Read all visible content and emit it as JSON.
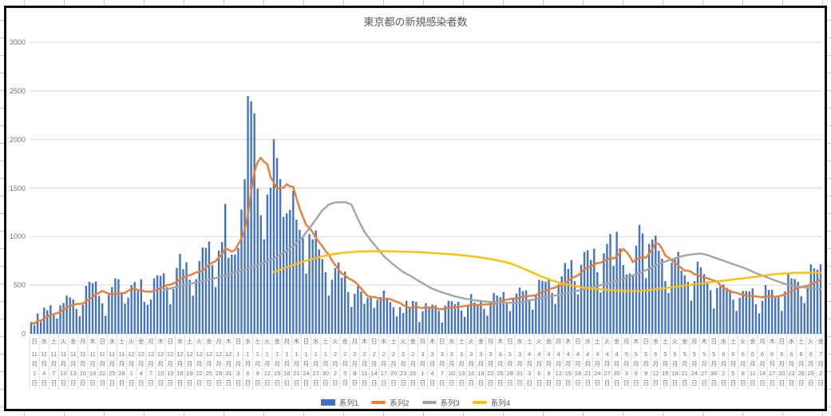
{
  "chart_data": {
    "type": "combo",
    "title": "東京都の新規感染者数",
    "y_axis": {
      "min": 0,
      "max": 3000,
      "step": 500,
      "tick_labels": [
        "0",
        "500",
        "1000",
        "1500",
        "2000",
        "2500",
        "3000"
      ]
    },
    "x_label_suffixes": {
      "month": "月",
      "day": "日"
    },
    "x_labels": [
      [
        "日",
        11,
        1
      ],
      [
        "水",
        11,
        4
      ],
      [
        "土",
        11,
        7
      ],
      [
        "火",
        11,
        10
      ],
      [
        "金",
        11,
        13
      ],
      [
        "月",
        11,
        16
      ],
      [
        "木",
        11,
        19
      ],
      [
        "日",
        11,
        22
      ],
      [
        "水",
        11,
        25
      ],
      [
        "土",
        11,
        28
      ],
      [
        "火",
        12,
        1
      ],
      [
        "金",
        12,
        4
      ],
      [
        "月",
        12,
        7
      ],
      [
        "木",
        12,
        10
      ],
      [
        "日",
        12,
        13
      ],
      [
        "水",
        12,
        16
      ],
      [
        "土",
        12,
        19
      ],
      [
        "火",
        12,
        22
      ],
      [
        "金",
        12,
        25
      ],
      [
        "月",
        12,
        28
      ],
      [
        "木",
        12,
        31
      ],
      [
        "日",
        1,
        3
      ],
      [
        "水",
        1,
        6
      ],
      [
        "土",
        1,
        9
      ],
      [
        "火",
        1,
        12
      ],
      [
        "金",
        1,
        15
      ],
      [
        "月",
        1,
        18
      ],
      [
        "木",
        1,
        21
      ],
      [
        "日",
        1,
        24
      ],
      [
        "水",
        1,
        27
      ],
      [
        "土",
        1,
        30
      ],
      [
        "火",
        2,
        2
      ],
      [
        "金",
        2,
        5
      ],
      [
        "月",
        2,
        8
      ],
      [
        "木",
        2,
        11
      ],
      [
        "日",
        2,
        14
      ],
      [
        "水",
        2,
        17
      ],
      [
        "土",
        2,
        20
      ],
      [
        "火",
        2,
        23
      ],
      [
        "金",
        2,
        26
      ],
      [
        "月",
        3,
        1
      ],
      [
        "木",
        3,
        4
      ],
      [
        "日",
        3,
        7
      ],
      [
        "水",
        3,
        10
      ],
      [
        "土",
        3,
        13
      ],
      [
        "火",
        3,
        16
      ],
      [
        "金",
        3,
        19
      ],
      [
        "月",
        3,
        22
      ],
      [
        "木",
        3,
        25
      ],
      [
        "日",
        3,
        28
      ],
      [
        "水",
        3,
        31
      ],
      [
        "土",
        4,
        3
      ],
      [
        "火",
        4,
        6
      ],
      [
        "金",
        4,
        9
      ],
      [
        "月",
        4,
        12
      ],
      [
        "木",
        4,
        15
      ],
      [
        "日",
        4,
        18
      ],
      [
        "水",
        4,
        21
      ],
      [
        "土",
        4,
        24
      ],
      [
        "火",
        4,
        27
      ],
      [
        "金",
        4,
        30
      ],
      [
        "月",
        5,
        3
      ],
      [
        "木",
        5,
        6
      ],
      [
        "日",
        5,
        9
      ],
      [
        "水",
        5,
        12
      ],
      [
        "土",
        5,
        15
      ],
      [
        "火",
        5,
        18
      ],
      [
        "金",
        5,
        21
      ],
      [
        "月",
        5,
        24
      ],
      [
        "木",
        5,
        27
      ],
      [
        "日",
        5,
        30
      ],
      [
        "水",
        6,
        2
      ],
      [
        "土",
        6,
        5
      ],
      [
        "火",
        6,
        8
      ],
      [
        "金",
        6,
        11
      ],
      [
        "月",
        6,
        14
      ],
      [
        "木",
        6,
        17
      ],
      [
        "日",
        6,
        20
      ],
      [
        "水",
        6,
        23
      ],
      [
        "土",
        6,
        26
      ],
      [
        "火",
        6,
        29
      ],
      [
        "金",
        7,
        2
      ]
    ],
    "series": [
      {
        "name": "系列1",
        "type": "bar",
        "color": "#4472C4",
        "values": [
          116,
          87,
          209,
          122,
          269,
          242,
          294,
          189,
          157,
          293,
          317,
          393,
          374,
          352,
          255,
          180,
          298,
          493,
          534,
          522,
          539,
          391,
          314,
          186,
          401,
          481,
          570,
          561,
          418,
          311,
          372,
          500,
          533,
          449,
          561,
          327,
          299,
          352,
          572,
          602,
          595,
          621,
          480,
          305,
          460,
          678,
          822,
          664,
          736,
          556,
          392,
          563,
          748,
          888,
          884,
          949,
          708,
          481,
          856,
          944,
          1337,
          783,
          814,
          816,
          884,
          1278,
          1591,
          2447,
          2392,
          2268,
          1494,
          1219,
          970,
          1433,
          1502,
          2001,
          1809,
          1592,
          1204,
          1240,
          1274,
          1471,
          1175,
          1070,
          986,
          618,
          1026,
          973,
          1064,
          868,
          769,
          633,
          393,
          556,
          676,
          734,
          577,
          639,
          429,
          276,
          412,
          491,
          434,
          307,
          369,
          371,
          266,
          350,
          378,
          445,
          353,
          327,
          272,
          178,
          275,
          213,
          340,
          270,
          337,
          329,
          121,
          232,
          316,
          279,
          301,
          293,
          237,
          116,
          290,
          340,
          335,
          304,
          330,
          239,
          175,
          300,
          409,
          323,
          303,
          342,
          256,
          187,
          337,
          420,
          394,
          376,
          430,
          313,
          234,
          364,
          414,
          475,
          440,
          446,
          355,
          249,
          399,
          555,
          545,
          537,
          570,
          421,
          306,
          510,
          591,
          729,
          667,
          759,
          543,
          405,
          711,
          843,
          861,
          759,
          876,
          635,
          425,
          828,
          925,
          1027,
          698,
          1050,
          879,
          708,
          609,
          621,
          591,
          907,
          1121,
          1032,
          573,
          925,
          969,
          1010,
          854,
          772,
          542,
          419,
          732,
          766,
          843,
          649,
          602,
          535,
          340,
          542,
          743,
          684,
          614,
          539,
          448,
          260,
          471,
          487,
          508,
          472,
          436,
          351,
          235,
          369,
          440,
          439,
          435,
          467,
          304,
          209,
          337,
          501,
          452,
          453,
          388,
          376,
          236,
          435,
          619,
          570,
          562,
          534,
          386,
          317,
          476,
          714,
          673,
          660,
          716
        ]
      },
      {
        "name": "系列2",
        "type": "line",
        "color": "#ED7D31",
        "note": "7-day moving average of 系列1 (computed by renderer)"
      },
      {
        "name": "系列3",
        "type": "line",
        "color": "#A5A5A5",
        "points_day_value": [
          [
            41,
            450
          ],
          [
            45,
            483
          ],
          [
            50,
            520
          ],
          [
            55,
            555
          ],
          [
            60,
            600
          ],
          [
            64,
            640
          ],
          [
            68,
            685
          ],
          [
            71,
            720
          ],
          [
            75,
            775
          ],
          [
            78,
            830
          ],
          [
            81,
            900
          ],
          [
            84,
            1000
          ],
          [
            87,
            1130
          ],
          [
            90,
            1270
          ],
          [
            92,
            1330
          ],
          [
            94,
            1352
          ],
          [
            97,
            1355
          ],
          [
            99,
            1330
          ],
          [
            101,
            1180
          ],
          [
            103,
            1050
          ],
          [
            105,
            960
          ],
          [
            107,
            880
          ],
          [
            109,
            800
          ],
          [
            111,
            740
          ],
          [
            113,
            685
          ],
          [
            115,
            635
          ],
          [
            117,
            600
          ],
          [
            119,
            560
          ],
          [
            121,
            520
          ],
          [
            123,
            480
          ],
          [
            125,
            450
          ],
          [
            128,
            415
          ],
          [
            131,
            385
          ],
          [
            134,
            362
          ],
          [
            137,
            345
          ],
          [
            140,
            333
          ],
          [
            143,
            325
          ],
          [
            147,
            319
          ],
          [
            151,
            320
          ],
          [
            155,
            350
          ],
          [
            159,
            378
          ],
          [
            163,
            400
          ],
          [
            167,
            430
          ],
          [
            171,
            458
          ],
          [
            175,
            492
          ],
          [
            179,
            525
          ],
          [
            183,
            565
          ],
          [
            187,
            612
          ],
          [
            191,
            668
          ],
          [
            194,
            722
          ],
          [
            197,
            755
          ],
          [
            200,
            788
          ],
          [
            203,
            812
          ],
          [
            205,
            820
          ],
          [
            207,
            826
          ],
          [
            209,
            810
          ],
          [
            212,
            775
          ],
          [
            215,
            740
          ],
          [
            218,
            705
          ],
          [
            221,
            670
          ],
          [
            224,
            625
          ],
          [
            227,
            585
          ],
          [
            230,
            548
          ],
          [
            233,
            512
          ],
          [
            236,
            492
          ],
          [
            239,
            477
          ],
          [
            242,
            466
          ],
          [
            244,
            461
          ]
        ]
      },
      {
        "name": "系列4",
        "type": "line",
        "color": "#FFC000",
        "points_day_value": [
          [
            75,
            635
          ],
          [
            78,
            672
          ],
          [
            81,
            708
          ],
          [
            84,
            742
          ],
          [
            87,
            772
          ],
          [
            90,
            798
          ],
          [
            93,
            818
          ],
          [
            96,
            832
          ],
          [
            99,
            841
          ],
          [
            102,
            847
          ],
          [
            106,
            850
          ],
          [
            110,
            849
          ],
          [
            114,
            846
          ],
          [
            118,
            842
          ],
          [
            122,
            836
          ],
          [
            126,
            828
          ],
          [
            130,
            818
          ],
          [
            134,
            806
          ],
          [
            138,
            790
          ],
          [
            142,
            770
          ],
          [
            146,
            742
          ],
          [
            149,
            715
          ],
          [
            152,
            672
          ],
          [
            155,
            630
          ],
          [
            158,
            585
          ],
          [
            161,
            548
          ],
          [
            164,
            518
          ],
          [
            167,
            498
          ],
          [
            170,
            480
          ],
          [
            173,
            468
          ],
          [
            176,
            457
          ],
          [
            179,
            449
          ],
          [
            182,
            443
          ],
          [
            185,
            439
          ],
          [
            188,
            441
          ],
          [
            191,
            450
          ],
          [
            194,
            462
          ],
          [
            197,
            474
          ],
          [
            200,
            487
          ],
          [
            203,
            500
          ],
          [
            206,
            513
          ],
          [
            209,
            526
          ],
          [
            212,
            538
          ],
          [
            215,
            550
          ],
          [
            218,
            562
          ],
          [
            221,
            574
          ],
          [
            224,
            588
          ],
          [
            227,
            602
          ],
          [
            230,
            614
          ],
          [
            233,
            621
          ],
          [
            236,
            626
          ],
          [
            239,
            628
          ],
          [
            242,
            629
          ],
          [
            244,
            630
          ]
        ]
      }
    ]
  }
}
